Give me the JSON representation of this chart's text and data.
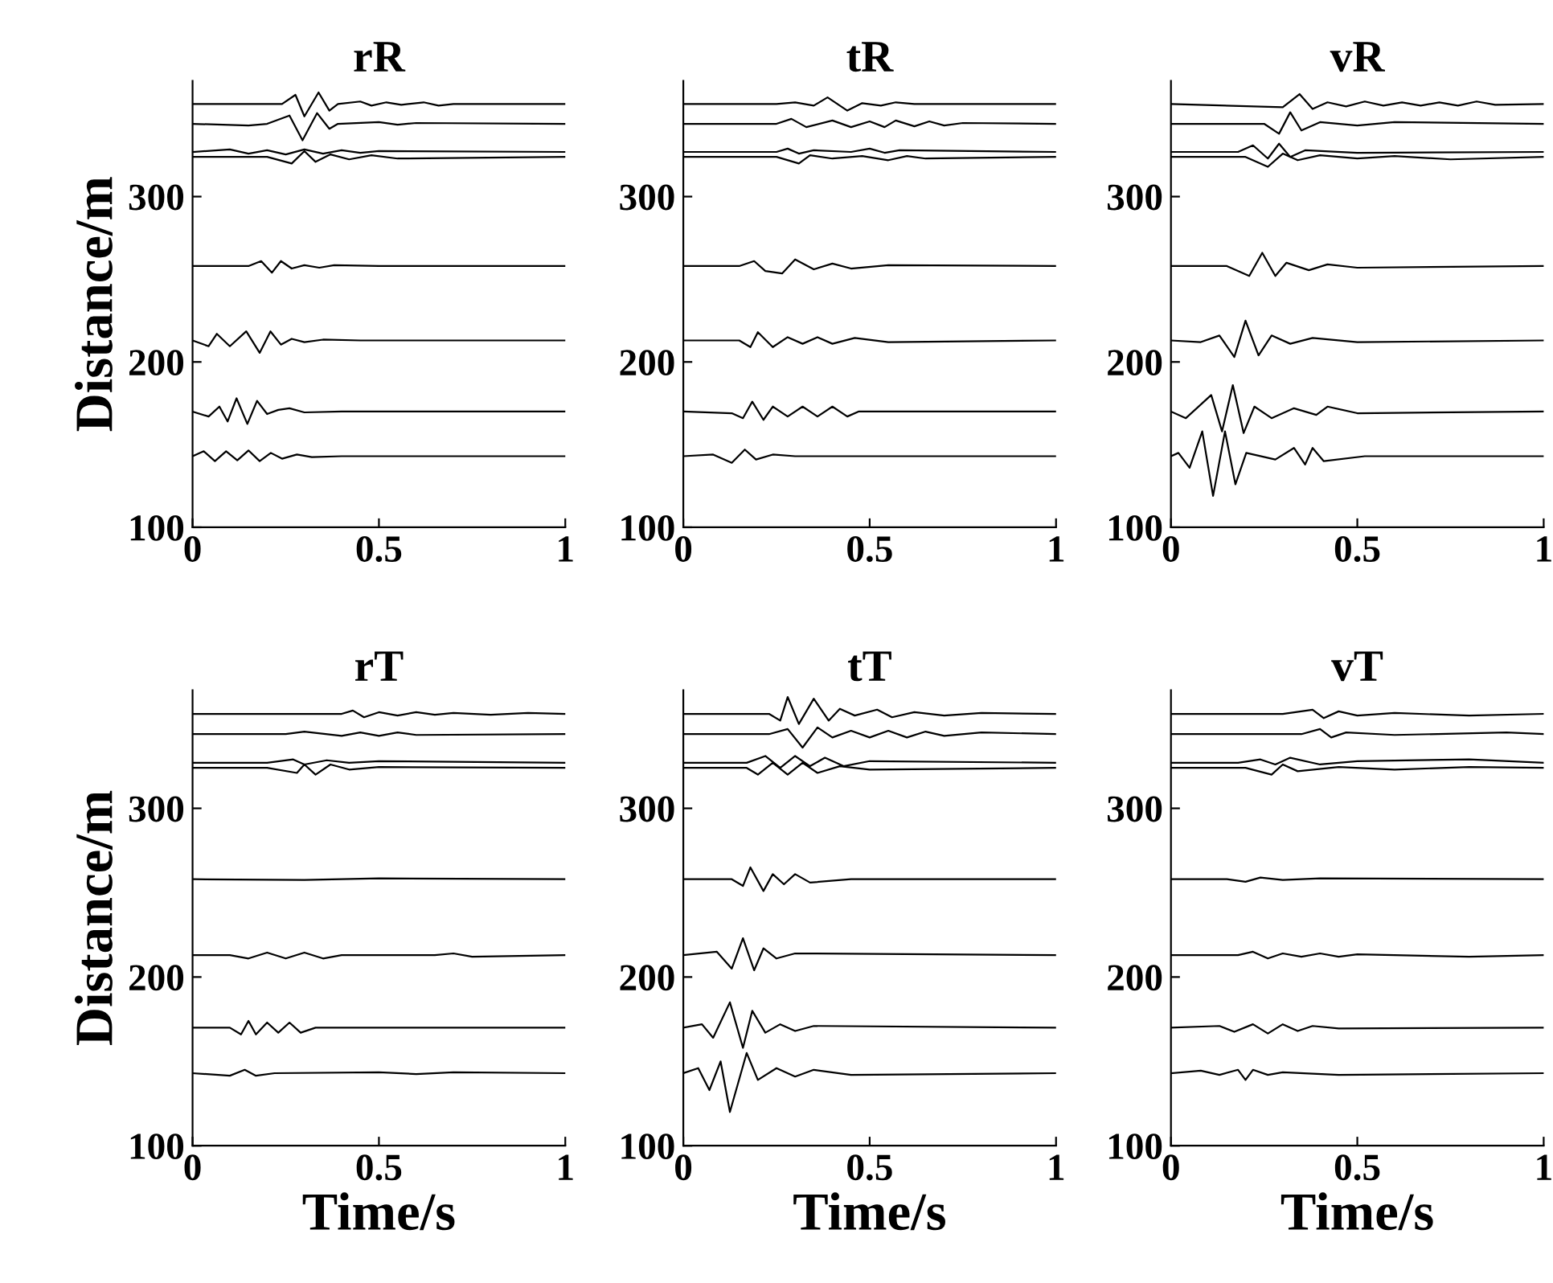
{
  "chart_data": [
    {
      "type": "line",
      "title": "rR",
      "ylabel": "Distance/m",
      "xlim": [
        0,
        1
      ],
      "ylim": [
        100,
        370
      ],
      "xticks": [
        0,
        0.5,
        1
      ],
      "yticks": [
        100,
        200,
        300
      ],
      "series": [
        {
          "color": "#000000",
          "x": [
            0,
            0.24,
            0.276,
            0.3,
            0.338,
            0.367,
            0.39,
            0.45,
            0.48,
            0.52,
            0.56,
            0.62,
            0.66,
            0.7,
            1
          ],
          "values": [
            356,
            356,
            361.5,
            348.5,
            363,
            352,
            356,
            357.5,
            355,
            357,
            355.5,
            357,
            355,
            356,
            356
          ]
        },
        {
          "color": "#000000",
          "x": [
            0,
            0.15,
            0.2,
            0.26,
            0.295,
            0.334,
            0.367,
            0.39,
            0.5,
            0.55,
            0.6,
            1
          ],
          "values": [
            344,
            343,
            344,
            349,
            334,
            350.5,
            341,
            344,
            345,
            343.5,
            344.5,
            344
          ]
        },
        {
          "color": "#000000",
          "x": [
            0,
            0.1,
            0.15,
            0.2,
            0.25,
            0.3,
            0.35,
            0.4,
            0.45,
            0.5,
            1
          ],
          "values": [
            327,
            328.5,
            326,
            328,
            325.5,
            328.5,
            326,
            328,
            326.5,
            327.5,
            327
          ]
        },
        {
          "color": "#000000",
          "x": [
            0,
            0.2,
            0.266,
            0.3,
            0.33,
            0.37,
            0.42,
            0.48,
            0.55,
            1
          ],
          "values": [
            324,
            324,
            320,
            327.5,
            321,
            325.5,
            322.5,
            325,
            323,
            324
          ]
        },
        {
          "color": "#000000",
          "x": [
            0,
            0.15,
            0.184,
            0.213,
            0.237,
            0.266,
            0.3,
            0.34,
            0.38,
            0.5,
            1
          ],
          "values": [
            258,
            258,
            261,
            254,
            261,
            256.5,
            258.5,
            257,
            258.5,
            258,
            258
          ]
        },
        {
          "color": "#000000",
          "x": [
            0,
            0.043,
            0.065,
            0.1,
            0.144,
            0.18,
            0.209,
            0.237,
            0.266,
            0.3,
            0.35,
            0.45,
            1
          ],
          "values": [
            213,
            209.5,
            217,
            209.5,
            218.5,
            205.5,
            218.5,
            210.5,
            214,
            212,
            213.5,
            213,
            213
          ]
        },
        {
          "color": "#000000",
          "x": [
            0,
            0.043,
            0.072,
            0.094,
            0.118,
            0.147,
            0.173,
            0.2,
            0.23,
            0.26,
            0.3,
            0.4,
            1
          ],
          "values": [
            170,
            167,
            173,
            164,
            178,
            162.5,
            176.5,
            168.5,
            171,
            172,
            169.5,
            170,
            170
          ]
        },
        {
          "color": "#000000",
          "x": [
            0,
            0.03,
            0.06,
            0.09,
            0.12,
            0.15,
            0.18,
            0.21,
            0.24,
            0.28,
            0.32,
            0.4,
            1
          ],
          "values": [
            143,
            146,
            140,
            146,
            140.5,
            146.5,
            140,
            145,
            141.5,
            144,
            142.5,
            143,
            143
          ]
        }
      ]
    },
    {
      "type": "line",
      "title": "tR",
      "xlim": [
        0,
        1
      ],
      "ylim": [
        100,
        370
      ],
      "xticks": [
        0,
        0.5,
        1
      ],
      "yticks": [
        100,
        200,
        300
      ],
      "series": [
        {
          "color": "#000000",
          "x": [
            0,
            0.25,
            0.3,
            0.35,
            0.387,
            0.44,
            0.48,
            0.53,
            0.57,
            0.62,
            1
          ],
          "values": [
            356,
            356,
            357,
            355,
            360,
            352,
            356.5,
            355,
            357,
            356,
            356
          ]
        },
        {
          "color": "#000000",
          "x": [
            0,
            0.25,
            0.29,
            0.33,
            0.4,
            0.45,
            0.5,
            0.54,
            0.57,
            0.62,
            0.66,
            0.7,
            0.75,
            1
          ],
          "values": [
            344,
            344,
            347,
            342,
            346,
            342,
            345.5,
            342,
            346,
            342.5,
            345.5,
            343,
            344.5,
            344
          ]
        },
        {
          "color": "#000000",
          "x": [
            0,
            0.25,
            0.28,
            0.31,
            0.35,
            0.45,
            0.5,
            0.54,
            0.58,
            1
          ],
          "values": [
            327,
            327,
            329,
            326,
            328,
            327,
            329,
            326.5,
            328,
            327
          ]
        },
        {
          "color": "#000000",
          "x": [
            0,
            0.25,
            0.31,
            0.34,
            0.4,
            0.48,
            0.55,
            0.6,
            0.65,
            1
          ],
          "values": [
            324,
            324,
            320,
            325,
            323,
            324.5,
            322,
            324.5,
            323,
            324
          ]
        },
        {
          "color": "#000000",
          "x": [
            0,
            0.15,
            0.19,
            0.22,
            0.265,
            0.3,
            0.35,
            0.4,
            0.45,
            0.55,
            1
          ],
          "values": [
            258,
            258,
            261,
            255,
            253.5,
            262,
            256,
            259.5,
            256.5,
            258.5,
            258
          ]
        },
        {
          "color": "#000000",
          "x": [
            0,
            0.15,
            0.18,
            0.2,
            0.24,
            0.28,
            0.32,
            0.36,
            0.4,
            0.46,
            0.55,
            1
          ],
          "values": [
            213,
            213,
            209,
            218,
            209,
            215,
            211,
            215,
            211,
            214.5,
            212,
            213
          ]
        },
        {
          "color": "#000000",
          "x": [
            0,
            0.13,
            0.16,
            0.185,
            0.215,
            0.24,
            0.28,
            0.32,
            0.36,
            0.4,
            0.44,
            0.47,
            1
          ],
          "values": [
            170,
            169,
            166,
            176,
            165,
            173,
            167,
            173,
            167,
            173,
            167,
            170,
            170
          ]
        },
        {
          "color": "#000000",
          "x": [
            0,
            0.08,
            0.13,
            0.165,
            0.195,
            0.24,
            0.3,
            1
          ],
          "values": [
            143,
            144,
            139,
            147,
            141,
            144,
            143,
            143
          ]
        }
      ]
    },
    {
      "type": "line",
      "title": "vR",
      "xlim": [
        0,
        1
      ],
      "ylim": [
        100,
        370
      ],
      "xticks": [
        0,
        0.5,
        1
      ],
      "yticks": [
        100,
        200,
        300
      ],
      "series": [
        {
          "color": "#000000",
          "x": [
            0,
            0.3,
            0.345,
            0.38,
            0.42,
            0.47,
            0.52,
            0.57,
            0.62,
            0.67,
            0.72,
            0.77,
            0.82,
            0.87,
            1
          ],
          "values": [
            356,
            354,
            362,
            353,
            357,
            354.5,
            357.5,
            355,
            357,
            355,
            357,
            355,
            357.5,
            355.5,
            356
          ]
        },
        {
          "color": "#000000",
          "x": [
            0,
            0.25,
            0.29,
            0.32,
            0.35,
            0.4,
            0.5,
            0.6,
            1
          ],
          "values": [
            344,
            344,
            338,
            351,
            340,
            345,
            343,
            345,
            344
          ]
        },
        {
          "color": "#000000",
          "x": [
            0,
            0.18,
            0.22,
            0.26,
            0.29,
            0.32,
            0.36,
            0.5,
            1
          ],
          "values": [
            327,
            327,
            331,
            323,
            332,
            324,
            328,
            326.5,
            327
          ]
        },
        {
          "color": "#000000",
          "x": [
            0,
            0.2,
            0.26,
            0.3,
            0.34,
            0.4,
            0.5,
            0.6,
            0.75,
            1
          ],
          "values": [
            324,
            324,
            318,
            326,
            322,
            325,
            323,
            324.5,
            322.5,
            324
          ]
        },
        {
          "color": "#000000",
          "x": [
            0,
            0.15,
            0.21,
            0.245,
            0.28,
            0.31,
            0.37,
            0.42,
            0.5,
            1
          ],
          "values": [
            258,
            258,
            252,
            266,
            252,
            260,
            255.5,
            259,
            257,
            258
          ]
        },
        {
          "color": "#000000",
          "x": [
            0,
            0.08,
            0.13,
            0.17,
            0.2,
            0.235,
            0.27,
            0.32,
            0.38,
            0.5,
            1
          ],
          "values": [
            213,
            212,
            216,
            203,
            225,
            204,
            216,
            211,
            214.5,
            212,
            213
          ]
        },
        {
          "color": "#000000",
          "x": [
            0,
            0.04,
            0.108,
            0.137,
            0.166,
            0.195,
            0.224,
            0.27,
            0.33,
            0.39,
            0.42,
            0.5,
            1
          ],
          "values": [
            170,
            166,
            180,
            158,
            186,
            157,
            173,
            166,
            172,
            168,
            173,
            169,
            170
          ]
        },
        {
          "color": "#000000",
          "x": [
            0,
            0.02,
            0.05,
            0.084,
            0.113,
            0.145,
            0.173,
            0.202,
            0.28,
            0.33,
            0.36,
            0.38,
            0.41,
            0.52,
            1
          ],
          "values": [
            143,
            145,
            136,
            158,
            119,
            158,
            126,
            145,
            141,
            148,
            138,
            148,
            140,
            143,
            143
          ]
        }
      ]
    },
    {
      "type": "line",
      "title": "rT",
      "ylabel": "Distance/m",
      "xlabel": "Time/s",
      "xlim": [
        0,
        1
      ],
      "ylim": [
        100,
        370
      ],
      "xticks": [
        0,
        0.5,
        1
      ],
      "yticks": [
        100,
        200,
        300
      ],
      "series": [
        {
          "color": "#000000",
          "x": [
            0,
            0.4,
            0.43,
            0.46,
            0.5,
            0.55,
            0.6,
            0.65,
            0.7,
            0.8,
            0.9,
            1
          ],
          "values": [
            356,
            356,
            358,
            354,
            357,
            355,
            357,
            355.5,
            356.5,
            355.5,
            356.5,
            356
          ]
        },
        {
          "color": "#000000",
          "x": [
            0,
            0.25,
            0.3,
            0.4,
            0.45,
            0.5,
            0.55,
            0.6,
            1
          ],
          "values": [
            344,
            344,
            345.5,
            343,
            345,
            343,
            345,
            343.5,
            344
          ]
        },
        {
          "color": "#000000",
          "x": [
            0,
            0.2,
            0.27,
            0.3,
            0.36,
            0.42,
            0.5,
            1
          ],
          "values": [
            327,
            327,
            329,
            326,
            328.5,
            327,
            328,
            327
          ]
        },
        {
          "color": "#000000",
          "x": [
            0,
            0.2,
            0.28,
            0.3,
            0.33,
            0.37,
            0.42,
            0.5,
            1
          ],
          "values": [
            324,
            324,
            321,
            326,
            320,
            326,
            323,
            324.5,
            324
          ]
        },
        {
          "color": "#000000",
          "x": [
            0,
            0.3,
            0.5,
            1
          ],
          "values": [
            258,
            257.5,
            258.5,
            258
          ]
        },
        {
          "color": "#000000",
          "x": [
            0,
            0.1,
            0.15,
            0.2,
            0.25,
            0.3,
            0.35,
            0.4,
            0.65,
            0.7,
            0.75,
            1
          ],
          "values": [
            213,
            213,
            211,
            214.5,
            211,
            214.5,
            211,
            213,
            213,
            214,
            212,
            213
          ]
        },
        {
          "color": "#000000",
          "x": [
            0,
            0.1,
            0.13,
            0.15,
            0.17,
            0.2,
            0.23,
            0.26,
            0.29,
            0.33,
            1
          ],
          "values": [
            170,
            170,
            166,
            174,
            166,
            173,
            167,
            173,
            167,
            170,
            170
          ]
        },
        {
          "color": "#000000",
          "x": [
            0,
            0.1,
            0.14,
            0.17,
            0.22,
            0.5,
            0.6,
            0.7,
            1
          ],
          "values": [
            143,
            141.5,
            145,
            141.5,
            143,
            143.5,
            142.5,
            143.5,
            143
          ]
        }
      ]
    },
    {
      "type": "line",
      "title": "tT",
      "xlabel": "Time/s",
      "xlim": [
        0,
        1
      ],
      "ylim": [
        100,
        370
      ],
      "xticks": [
        0,
        0.5,
        1
      ],
      "yticks": [
        100,
        200,
        300
      ],
      "series": [
        {
          "color": "#000000",
          "x": [
            0,
            0.23,
            0.26,
            0.28,
            0.31,
            0.35,
            0.39,
            0.42,
            0.46,
            0.52,
            0.56,
            0.62,
            0.7,
            0.8,
            1
          ],
          "values": [
            356,
            356,
            352,
            366,
            350,
            365,
            352,
            359,
            355,
            358.5,
            354,
            357,
            355,
            356.5,
            356
          ]
        },
        {
          "color": "#000000",
          "x": [
            0,
            0.23,
            0.28,
            0.32,
            0.36,
            0.4,
            0.45,
            0.5,
            0.55,
            0.6,
            0.65,
            0.7,
            0.8,
            1
          ],
          "values": [
            344,
            344,
            347,
            336,
            348,
            342,
            346,
            342,
            346,
            342,
            345.5,
            343,
            345,
            344
          ]
        },
        {
          "color": "#000000",
          "x": [
            0,
            0.17,
            0.22,
            0.26,
            0.3,
            0.34,
            0.38,
            0.43,
            0.5,
            1
          ],
          "values": [
            327,
            327,
            331,
            324,
            331,
            325,
            330,
            325,
            328,
            327
          ]
        },
        {
          "color": "#000000",
          "x": [
            0,
            0.17,
            0.2,
            0.24,
            0.28,
            0.32,
            0.36,
            0.42,
            0.5,
            1
          ],
          "values": [
            324,
            324,
            320,
            327,
            320,
            327,
            321,
            325,
            323,
            324
          ]
        },
        {
          "color": "#000000",
          "x": [
            0,
            0.13,
            0.16,
            0.18,
            0.215,
            0.24,
            0.27,
            0.3,
            0.34,
            0.45,
            1
          ],
          "values": [
            258,
            258,
            254,
            265,
            251,
            261,
            255,
            261,
            256,
            258,
            258
          ]
        },
        {
          "color": "#000000",
          "x": [
            0,
            0.09,
            0.13,
            0.16,
            0.19,
            0.215,
            0.25,
            0.3,
            1
          ],
          "values": [
            213,
            215,
            205,
            223,
            204,
            217,
            211,
            214,
            213
          ]
        },
        {
          "color": "#000000",
          "x": [
            0,
            0.05,
            0.08,
            0.125,
            0.16,
            0.185,
            0.22,
            0.26,
            0.3,
            0.35,
            1
          ],
          "values": [
            170,
            172,
            164,
            185,
            158,
            180,
            167,
            172,
            168,
            171,
            170
          ]
        },
        {
          "color": "#000000",
          "x": [
            0,
            0.04,
            0.07,
            0.1,
            0.125,
            0.17,
            0.2,
            0.25,
            0.3,
            0.35,
            0.45,
            1
          ],
          "values": [
            143,
            146,
            133,
            150,
            120,
            155,
            139,
            146,
            141,
            145,
            142,
            143
          ]
        }
      ]
    },
    {
      "type": "line",
      "title": "vT",
      "xlabel": "Time/s",
      "xlim": [
        0,
        1
      ],
      "ylim": [
        100,
        370
      ],
      "xticks": [
        0,
        0.5,
        1
      ],
      "yticks": [
        100,
        200,
        300
      ],
      "series": [
        {
          "color": "#000000",
          "x": [
            0,
            0.3,
            0.38,
            0.41,
            0.45,
            0.5,
            0.6,
            0.8,
            1
          ],
          "values": [
            356,
            356,
            358.5,
            353.5,
            357.5,
            355,
            356.5,
            355,
            356
          ]
        },
        {
          "color": "#000000",
          "x": [
            0,
            0.35,
            0.4,
            0.43,
            0.47,
            0.6,
            0.9,
            1
          ],
          "values": [
            344,
            344,
            347,
            342,
            345,
            343.5,
            345,
            344
          ]
        },
        {
          "color": "#000000",
          "x": [
            0,
            0.18,
            0.24,
            0.28,
            0.32,
            0.4,
            0.5,
            0.8,
            1
          ],
          "values": [
            327,
            327,
            329,
            326,
            330,
            326,
            328,
            329,
            327
          ]
        },
        {
          "color": "#000000",
          "x": [
            0,
            0.2,
            0.27,
            0.3,
            0.34,
            0.45,
            0.6,
            0.8,
            1
          ],
          "values": [
            324,
            324,
            320,
            326,
            322,
            324.5,
            323,
            324.5,
            324
          ]
        },
        {
          "color": "#000000",
          "x": [
            0,
            0.15,
            0.2,
            0.24,
            0.3,
            0.4,
            1
          ],
          "values": [
            258,
            258,
            256.5,
            259,
            257.5,
            258.5,
            258
          ]
        },
        {
          "color": "#000000",
          "x": [
            0,
            0.18,
            0.22,
            0.26,
            0.3,
            0.35,
            0.4,
            0.45,
            0.5,
            0.8,
            1
          ],
          "values": [
            213,
            213,
            215,
            211,
            214,
            212,
            214,
            212,
            213.5,
            212,
            213
          ]
        },
        {
          "color": "#000000",
          "x": [
            0,
            0.13,
            0.17,
            0.22,
            0.26,
            0.3,
            0.34,
            0.38,
            0.45,
            1
          ],
          "values": [
            170,
            171,
            167.5,
            172,
            166.5,
            172,
            168,
            171,
            169.5,
            170
          ]
        },
        {
          "color": "#000000",
          "x": [
            0,
            0.08,
            0.13,
            0.18,
            0.2,
            0.22,
            0.26,
            0.3,
            0.45,
            1
          ],
          "values": [
            143,
            144.5,
            142,
            145,
            139,
            145,
            142,
            143.5,
            142,
            143
          ]
        }
      ]
    }
  ]
}
